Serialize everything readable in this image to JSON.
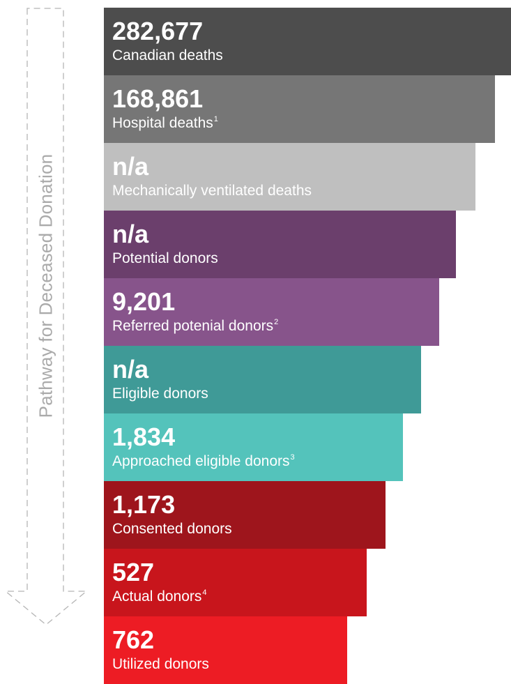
{
  "pathway_label": "Pathway for Deceased Donation",
  "stages": [
    {
      "value": "282,677",
      "label": "Canadian deaths",
      "note": "",
      "color": "#4d4d4d"
    },
    {
      "value": "168,861",
      "label": "Hospital deaths",
      "note": "1",
      "color": "#767676"
    },
    {
      "value": "n/a",
      "label": "Mechanically ventilated deaths",
      "note": "",
      "color": "#bfbfbf"
    },
    {
      "value": "n/a",
      "label": "Potential donors",
      "note": "",
      "color": "#6b3f6c"
    },
    {
      "value": "9,201",
      "label": "Referred potenial donors",
      "note": "2",
      "color": "#87548b"
    },
    {
      "value": "n/a",
      "label": "Eligible donors",
      "note": "",
      "color": "#3f9a97"
    },
    {
      "value": "1,834",
      "label": "Approached eligible donors",
      "note": "3",
      "color": "#54c3bb"
    },
    {
      "value": "1,173",
      "label": "Consented donors",
      "note": "",
      "color": "#9e151c"
    },
    {
      "value": "527",
      "label": "Actual donors",
      "note": "4",
      "color": "#c8151c"
    },
    {
      "value": "762",
      "label": "Utilized donors",
      "note": "",
      "color": "#ed1c24"
    }
  ]
}
